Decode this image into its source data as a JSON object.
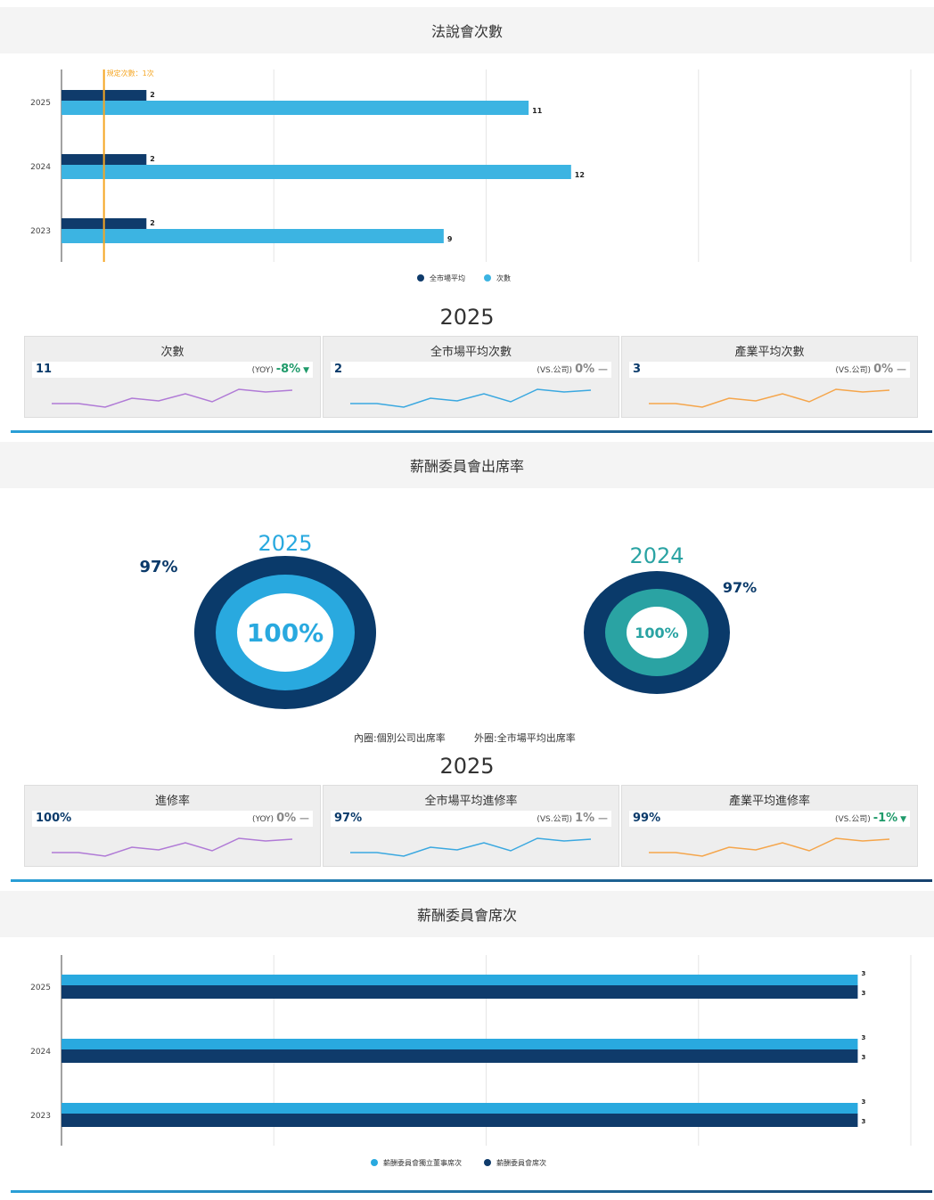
{
  "sections": {
    "s1_title": "法說會次數",
    "s2_title": "薪酬委員會出席率",
    "s3_title": "薪酬委員會席次"
  },
  "chart_data": [
    {
      "type": "bar",
      "orientation": "horizontal",
      "categories": [
        "2025",
        "2024",
        "2023"
      ],
      "series": [
        {
          "name": "全市場平均",
          "values": [
            2,
            2,
            2
          ],
          "color": "#0f3b6b"
        },
        {
          "name": "次數",
          "values": [
            11,
            12,
            9
          ],
          "color": "#3cb4e2"
        }
      ],
      "xlim": [
        0,
        20
      ],
      "reference_line": {
        "label": "規定次數：1次",
        "value": 1,
        "color": "#f5a623"
      },
      "legend": "bottom-center",
      "grid": true
    },
    {
      "type": "pie",
      "subtype": "nested-donut",
      "charts": [
        {
          "year": "2025",
          "inner": 100,
          "outer": 97,
          "inner_label": "100%",
          "outer_label": "97%",
          "inner_color": "#29a9df",
          "outer_color": "#0a3a6a"
        },
        {
          "year": "2024",
          "inner": 100,
          "outer": 97,
          "inner_label": "100%",
          "outer_label": "97%",
          "inner_color": "#2aa3a3",
          "outer_color": "#0a3a6a"
        }
      ],
      "caption_inner": "內圈:個別公司出席率",
      "caption_outer": "外圈:全市場平均出席率"
    },
    {
      "type": "bar",
      "orientation": "horizontal",
      "categories": [
        "2025",
        "2024",
        "2023"
      ],
      "series": [
        {
          "name": "薪酬委員會獨立董事席次",
          "values": [
            3,
            3,
            3
          ],
          "color": "#29a9df"
        },
        {
          "name": "薪酬委員會席次",
          "values": [
            3,
            3,
            3
          ],
          "color": "#0f3b6b"
        }
      ],
      "legend": "bottom-center",
      "grid": true
    }
  ],
  "kpi1": {
    "year": "2025",
    "cards": [
      {
        "title": "次數",
        "value": "11",
        "tag": "(YOY)",
        "pct": "-8%",
        "trend": "down",
        "color": "#b07ad6"
      },
      {
        "title": "全市場平均次數",
        "value": "2",
        "tag": "(VS.公司)",
        "pct": "0%",
        "trend": "flat",
        "color": "#3aa8e0"
      },
      {
        "title": "產業平均次數",
        "value": "3",
        "tag": "(VS.公司)",
        "pct": "0%",
        "trend": "flat",
        "color": "#f5a54a"
      }
    ]
  },
  "kpi2": {
    "year": "2025",
    "cards": [
      {
        "title": "進修率",
        "value": "100%",
        "tag": "(YOY)",
        "pct": "0%",
        "trend": "flat",
        "color": "#b07ad6"
      },
      {
        "title": "全市場平均進修率",
        "value": "97%",
        "tag": "(VS.公司)",
        "pct": "1%",
        "trend": "flat",
        "color": "#3aa8e0"
      },
      {
        "title": "產業平均進修率",
        "value": "99%",
        "tag": "(VS.公司)",
        "pct": "-1%",
        "trend": "down",
        "color": "#f5a54a"
      }
    ]
  },
  "icons": {
    "down": "triangle-down-icon",
    "flat": "dash-icon"
  }
}
